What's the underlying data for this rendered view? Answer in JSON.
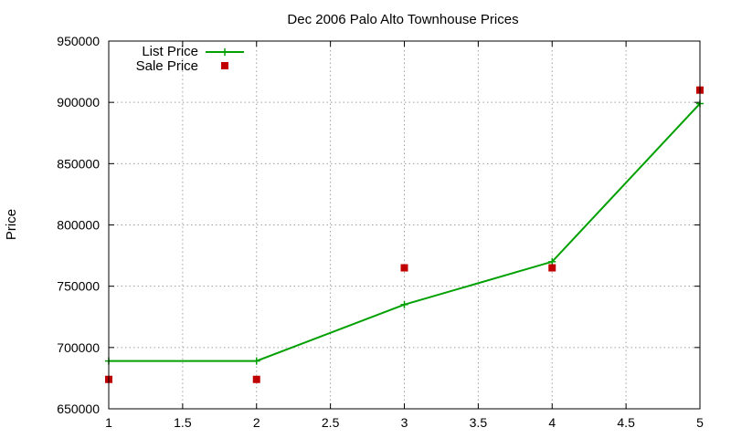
{
  "chart_data": {
    "type": "line",
    "title": "Dec 2006 Palo Alto Townhouse Prices",
    "xlabel": "",
    "ylabel": "Price",
    "xlim": [
      1,
      5
    ],
    "ylim": [
      650000,
      950000
    ],
    "x_ticks": [
      "1",
      "1.5",
      "2",
      "2.5",
      "3",
      "3.5",
      "4",
      "4.5",
      "5"
    ],
    "y_ticks": [
      "650000",
      "700000",
      "750000",
      "800000",
      "850000",
      "900000",
      "950000"
    ],
    "grid": true,
    "legend_position": "top-left",
    "series": [
      {
        "name": "List Price",
        "style": "line-with-plus-markers",
        "color": "#00a000",
        "x": [
          1,
          2,
          3,
          4,
          5
        ],
        "y": [
          689000,
          689000,
          735000,
          770000,
          899000
        ]
      },
      {
        "name": "Sale Price",
        "style": "square-markers",
        "color": "#c00000",
        "x": [
          1,
          2,
          3,
          4,
          5
        ],
        "y": [
          674000,
          674000,
          765000,
          765000,
          910000
        ]
      }
    ]
  }
}
